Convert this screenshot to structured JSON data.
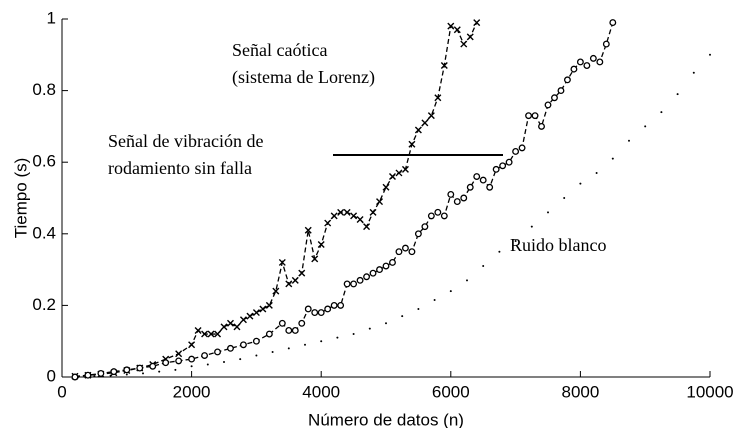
{
  "chart_data": {
    "type": "line",
    "xlabel": "Número de datos (n)",
    "ylabel": "Tiempo (s)",
    "xlim": [
      0,
      10000
    ],
    "ylim": [
      0,
      1
    ],
    "xticks": [
      0,
      2000,
      4000,
      6000,
      8000,
      10000
    ],
    "yticks": [
      0,
      0.2,
      0.4,
      0.6,
      0.8,
      1
    ],
    "annotations": [
      "Señal caótica",
      "(sistema de Lorenz)",
      "Señal de vibración de",
      "rodamiento sin falla",
      "Ruido blanco"
    ],
    "series": [
      {
        "marker": "x",
        "linestyle": "dashed",
        "color": "#000",
        "x": [
          200,
          400,
          600,
          800,
          1000,
          1200,
          1400,
          1600,
          1800,
          2000,
          2100,
          2200,
          2300,
          2400,
          2500,
          2600,
          2700,
          2800,
          2900,
          3000,
          3100,
          3200,
          3300,
          3400,
          3500,
          3600,
          3700,
          3800,
          3900,
          4000,
          4100,
          4200,
          4300,
          4400,
          4500,
          4600,
          4700,
          4800,
          4900,
          5000,
          5100,
          5200,
          5300,
          5400,
          5500,
          5600,
          5700,
          5800,
          5900,
          6000,
          6100,
          6200,
          6300,
          6400
        ],
        "values": [
          0.002,
          0.005,
          0.008,
          0.012,
          0.018,
          0.025,
          0.035,
          0.05,
          0.065,
          0.09,
          0.13,
          0.12,
          0.12,
          0.12,
          0.14,
          0.15,
          0.14,
          0.16,
          0.17,
          0.18,
          0.19,
          0.2,
          0.24,
          0.32,
          0.26,
          0.27,
          0.29,
          0.41,
          0.33,
          0.37,
          0.43,
          0.45,
          0.46,
          0.46,
          0.45,
          0.44,
          0.42,
          0.46,
          0.49,
          0.53,
          0.56,
          0.57,
          0.58,
          0.65,
          0.69,
          0.71,
          0.73,
          0.78,
          0.87,
          0.98,
          0.97,
          0.93,
          0.95,
          0.99
        ]
      },
      {
        "marker": "o",
        "linestyle": "dashed",
        "color": "#000",
        "x": [
          200,
          400,
          600,
          800,
          1000,
          1200,
          1400,
          1600,
          1800,
          2000,
          2200,
          2400,
          2600,
          2800,
          3000,
          3200,
          3400,
          3500,
          3600,
          3700,
          3800,
          3900,
          4000,
          4100,
          4200,
          4300,
          4400,
          4500,
          4600,
          4700,
          4800,
          4900,
          5000,
          5100,
          5200,
          5300,
          5400,
          5500,
          5600,
          5700,
          5800,
          5900,
          6000,
          6100,
          6200,
          6300,
          6400,
          6500,
          6600,
          6700,
          6800,
          6900,
          7000,
          7100,
          7200,
          7300,
          7400,
          7500,
          7600,
          7700,
          7800,
          7900,
          8000,
          8100,
          8200,
          8300,
          8400,
          8500
        ],
        "values": [
          0,
          0.005,
          0.01,
          0.015,
          0.02,
          0.025,
          0.03,
          0.04,
          0.045,
          0.05,
          0.06,
          0.07,
          0.08,
          0.09,
          0.1,
          0.12,
          0.15,
          0.13,
          0.13,
          0.15,
          0.19,
          0.18,
          0.18,
          0.19,
          0.2,
          0.2,
          0.26,
          0.26,
          0.27,
          0.28,
          0.29,
          0.3,
          0.31,
          0.32,
          0.35,
          0.36,
          0.35,
          0.4,
          0.42,
          0.45,
          0.46,
          0.45,
          0.51,
          0.49,
          0.5,
          0.53,
          0.56,
          0.55,
          0.53,
          0.58,
          0.59,
          0.6,
          0.63,
          0.64,
          0.73,
          0.73,
          0.7,
          0.76,
          0.78,
          0.8,
          0.83,
          0.86,
          0.88,
          0.87,
          0.89,
          0.88,
          0.93,
          0.99
        ]
      },
      {
        "marker": ".",
        "linestyle": "none",
        "color": "#000",
        "x": [
          250,
          500,
          750,
          1000,
          1250,
          1500,
          1750,
          2000,
          2250,
          2500,
          2750,
          3000,
          3250,
          3500,
          3750,
          4000,
          4250,
          4500,
          4750,
          5000,
          5250,
          5500,
          5750,
          6000,
          6250,
          6500,
          6750,
          7000,
          7250,
          7500,
          7750,
          8000,
          8250,
          8500,
          8750,
          9000,
          9250,
          9500,
          9750,
          10000
        ],
        "values": [
          0,
          0.002,
          0.004,
          0.007,
          0.01,
          0.015,
          0.02,
          0.03,
          0.035,
          0.042,
          0.05,
          0.06,
          0.07,
          0.08,
          0.09,
          0.1,
          0.11,
          0.12,
          0.135,
          0.15,
          0.17,
          0.19,
          0.215,
          0.24,
          0.27,
          0.31,
          0.35,
          0.38,
          0.42,
          0.46,
          0.5,
          0.54,
          0.57,
          0.61,
          0.66,
          0.7,
          0.74,
          0.79,
          0.85,
          0.9
        ]
      }
    ]
  }
}
